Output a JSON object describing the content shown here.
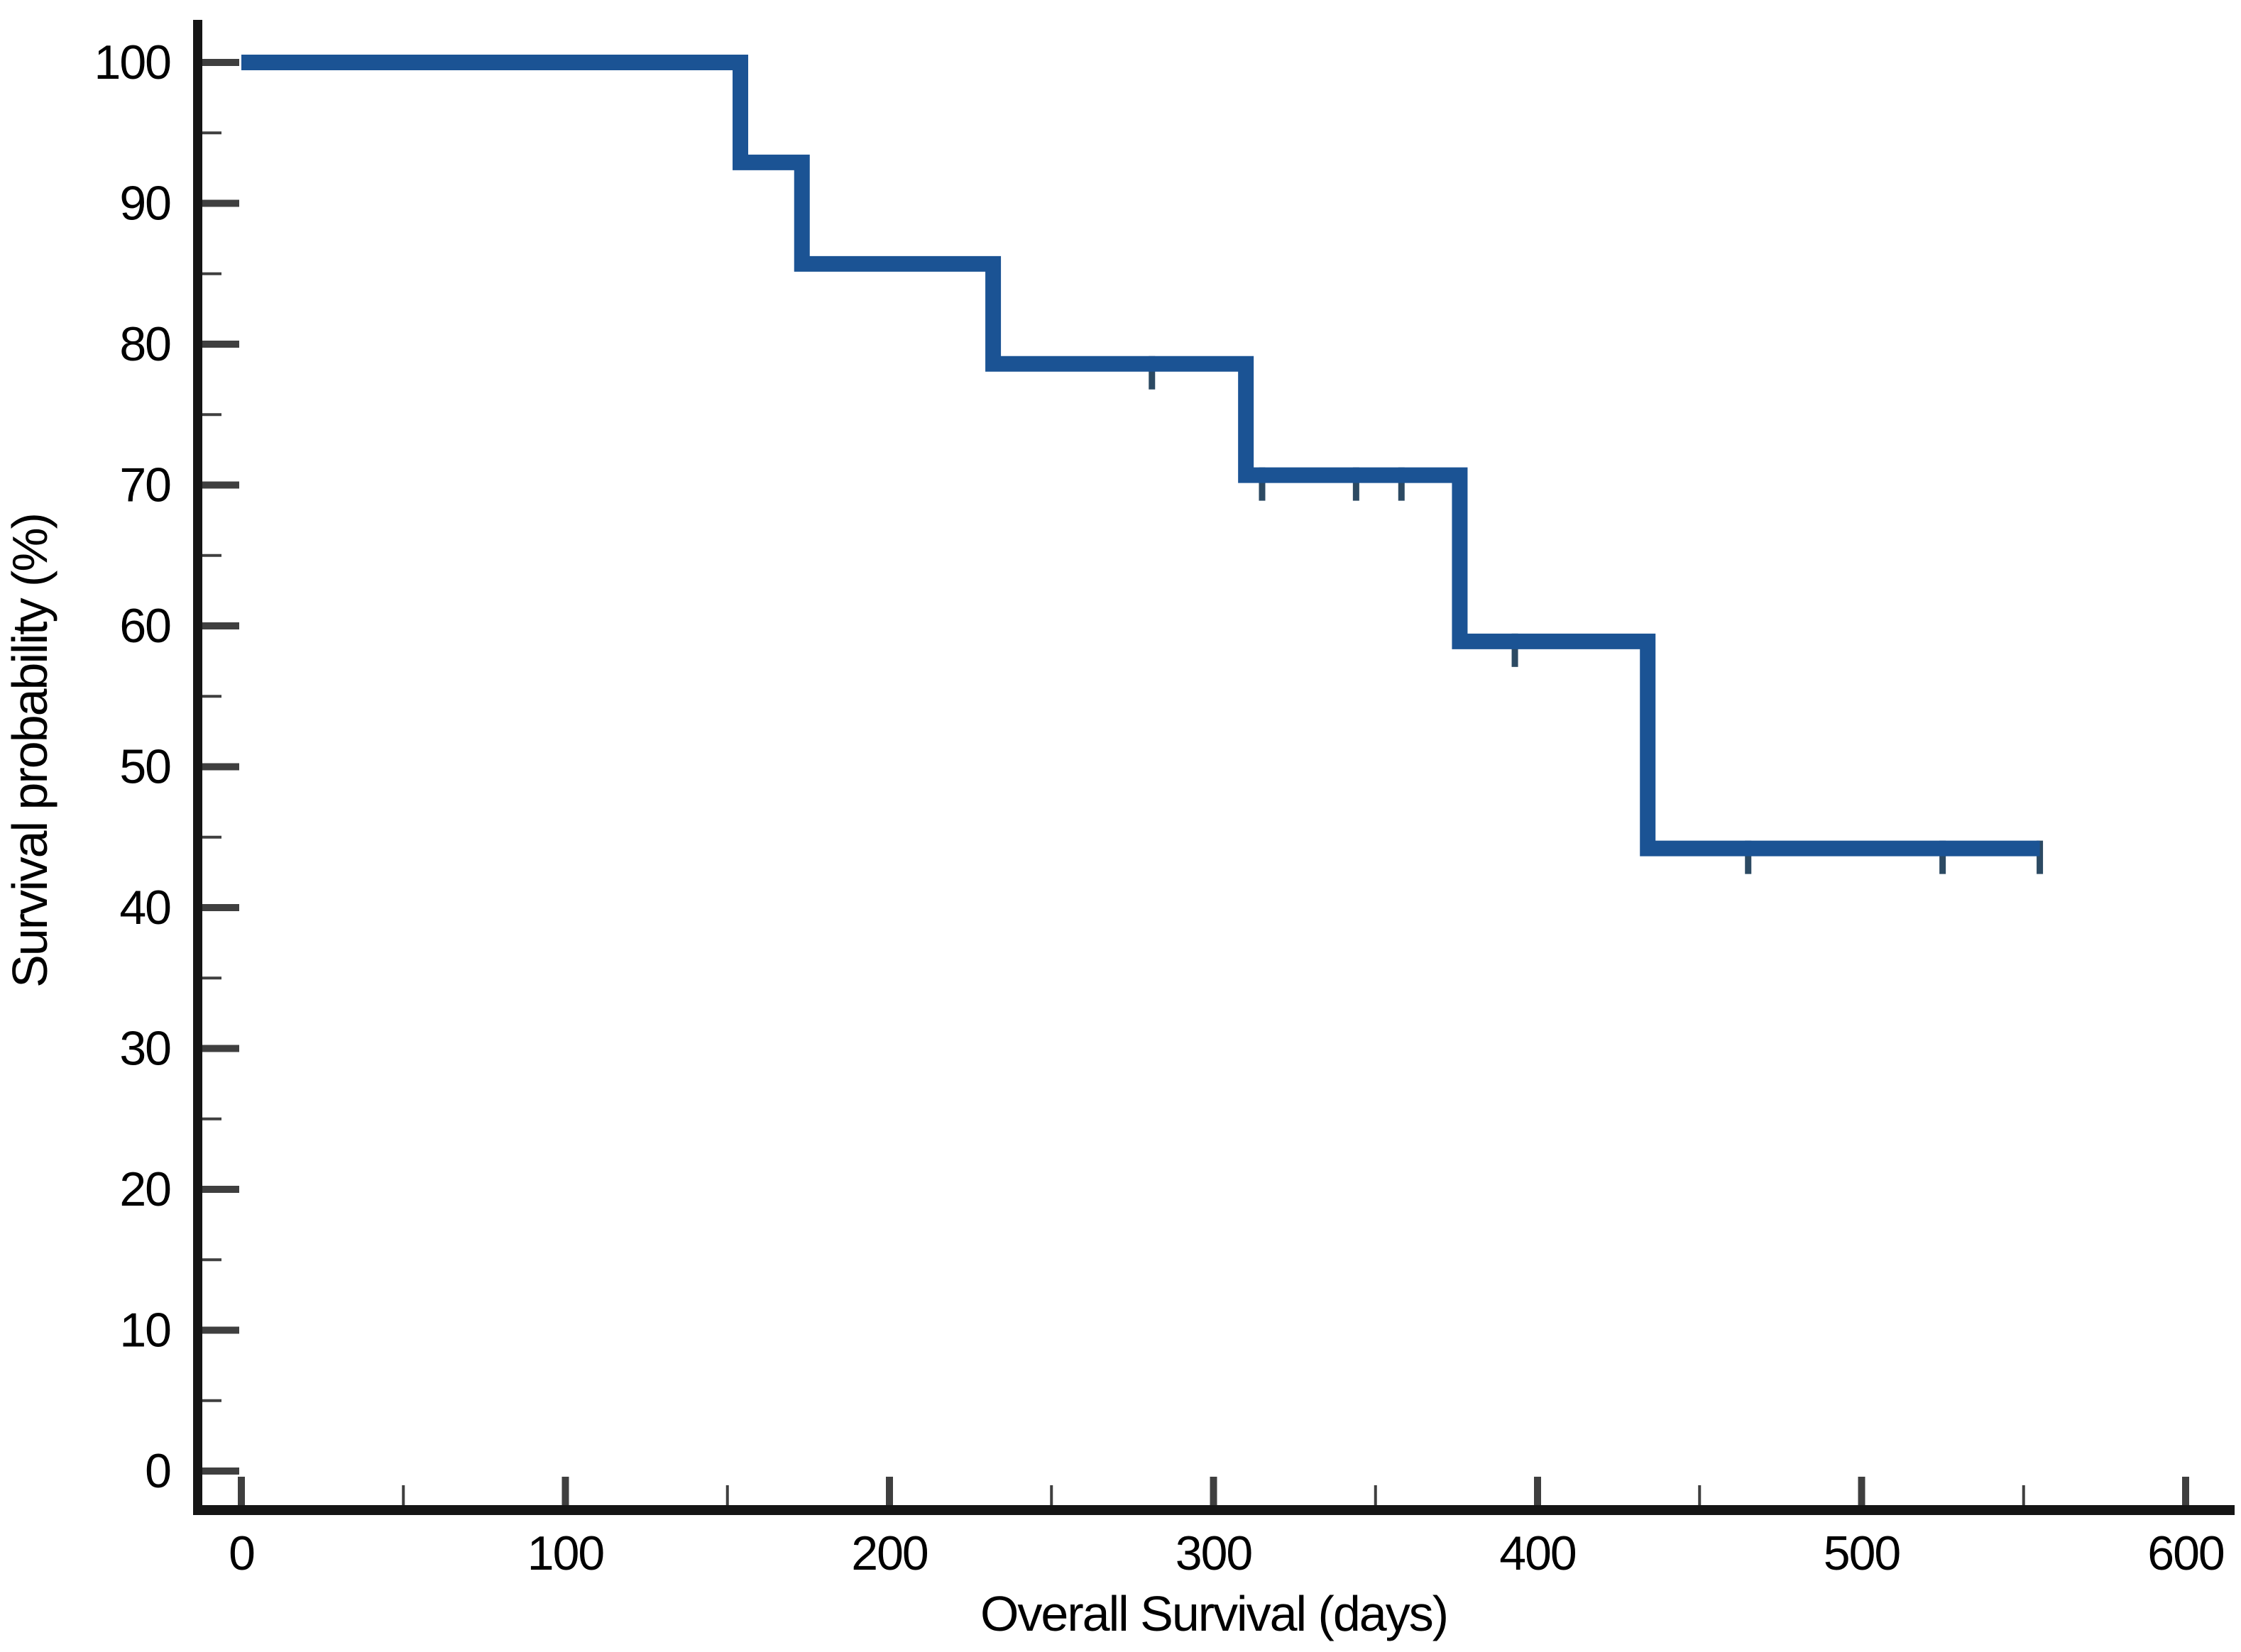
{
  "figure": {
    "title": "",
    "background_color": "#FFFFFF"
  },
  "chart_data": {
    "type": "line",
    "subtype": "kaplan-meier-step-curve",
    "title": "",
    "xlabel": "Overall Survival (days)",
    "ylabel": "Survival probability (%)",
    "xlim": [
      0,
      600
    ],
    "ylim": [
      0,
      100
    ],
    "grid": false,
    "legend": "none",
    "x_major_ticks": [
      0,
      100,
      200,
      300,
      400,
      500,
      600
    ],
    "x_minor_ticks": [
      50,
      150,
      250,
      350,
      450,
      550
    ],
    "y_major_ticks": [
      0,
      10,
      20,
      30,
      40,
      50,
      60,
      70,
      80,
      90,
      100
    ],
    "y_minor_ticks": [
      5,
      15,
      25,
      35,
      45,
      55,
      65,
      75,
      85,
      95
    ],
    "colors": {
      "curve": "#1B5394",
      "censor_mark": "#2C4A63",
      "axis_line": "#151515",
      "tick_mark": "#3F3F3F",
      "label": "#000000"
    },
    "series": [
      {
        "name": "Overall survival",
        "color": "#1B5394",
        "steps": [
          {
            "from_day": 0,
            "to_day": 154,
            "survival_pct": 100
          },
          {
            "from_day": 154,
            "to_day": 173,
            "survival_pct": 92.9
          },
          {
            "from_day": 173,
            "to_day": 232,
            "survival_pct": 85.7
          },
          {
            "from_day": 232,
            "to_day": 310,
            "survival_pct": 78.6
          },
          {
            "from_day": 310,
            "to_day": 376,
            "survival_pct": 70.7
          },
          {
            "from_day": 376,
            "to_day": 434,
            "survival_pct": 58.9
          },
          {
            "from_day": 434,
            "to_day": 555,
            "survival_pct": 44.2
          }
        ],
        "censor_marks": [
          {
            "day": 281,
            "survival_pct": 78.6
          },
          {
            "day": 315,
            "survival_pct": 70.7
          },
          {
            "day": 344,
            "survival_pct": 70.7
          },
          {
            "day": 358,
            "survival_pct": 70.7
          },
          {
            "day": 393,
            "survival_pct": 58.9
          },
          {
            "day": 465,
            "survival_pct": 44.2
          },
          {
            "day": 525,
            "survival_pct": 44.2
          },
          {
            "day": 555,
            "survival_pct": 44.2
          }
        ]
      }
    ]
  }
}
